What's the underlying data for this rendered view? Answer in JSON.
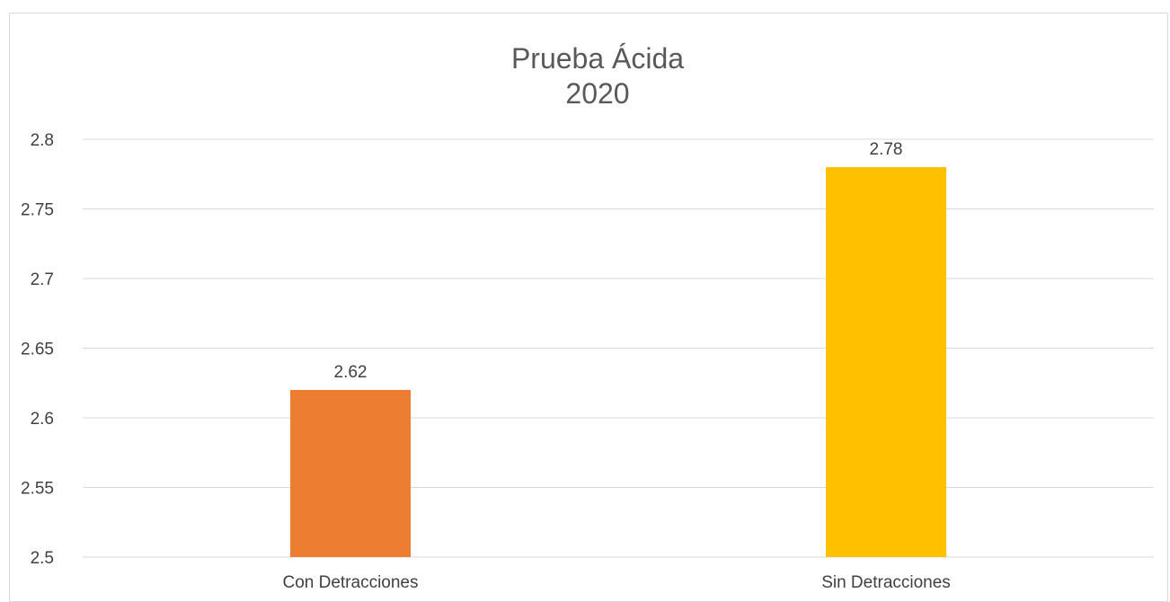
{
  "chart_data": {
    "type": "bar",
    "title": [
      "Prueba Ácida",
      "2020"
    ],
    "categories": [
      "Con Detracciones",
      "Sin Detracciones"
    ],
    "values": [
      2.62,
      2.78
    ],
    "data_labels": [
      "2.62",
      "2.78"
    ],
    "bar_colors": [
      "#ED7D31",
      "#FFC000"
    ],
    "ylim": [
      2.5,
      2.8
    ],
    "yticks": [
      2.5,
      2.55,
      2.6,
      2.65,
      2.7,
      2.75,
      2.8
    ],
    "ytick_labels": [
      "2.5",
      "2.55",
      "2.6",
      "2.65",
      "2.7",
      "2.75",
      "2.8"
    ],
    "grid": true,
    "legend": "none"
  }
}
